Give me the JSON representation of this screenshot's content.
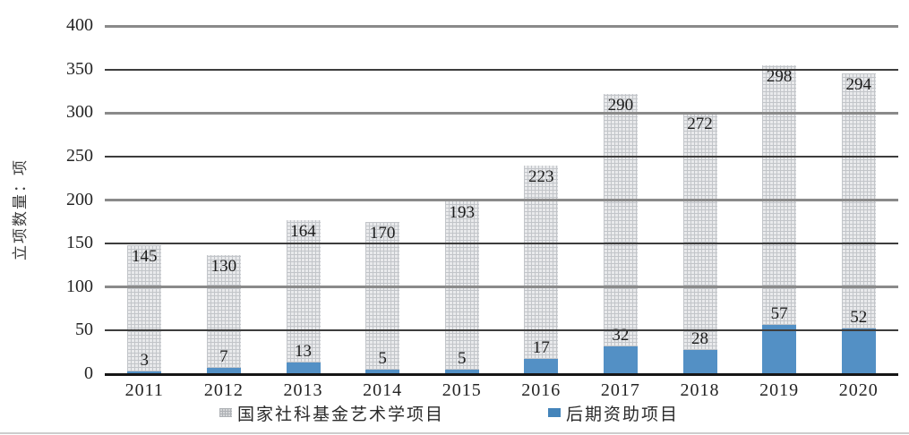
{
  "chart_data": {
    "type": "bar",
    "stacked": true,
    "title": "",
    "xlabel": "",
    "ylabel": "立项数量：项",
    "ylim": [
      0,
      400
    ],
    "yticks": [
      0,
      50,
      100,
      150,
      200,
      250,
      300,
      350,
      400
    ],
    "grid": true,
    "legend_position": "bottom",
    "categories": [
      "2011",
      "2012",
      "2013",
      "2014",
      "2015",
      "2016",
      "2017",
      "2018",
      "2019",
      "2020"
    ],
    "series": [
      {
        "name": "后期资助项目",
        "color": "#5390c5",
        "values": [
          3,
          7,
          13,
          5,
          5,
          17,
          32,
          28,
          57,
          52
        ]
      },
      {
        "name": "国家社科基金艺术学项目",
        "color": "#e9eaec",
        "pattern": "grid-hatch",
        "values": [
          145,
          130,
          164,
          170,
          193,
          223,
          290,
          272,
          298,
          294
        ]
      }
    ],
    "legend": [
      {
        "label": "国家社科基金艺术学项目",
        "swatch": "gray-hatch"
      },
      {
        "label": "后期资助项目",
        "swatch": "blue"
      }
    ]
  }
}
